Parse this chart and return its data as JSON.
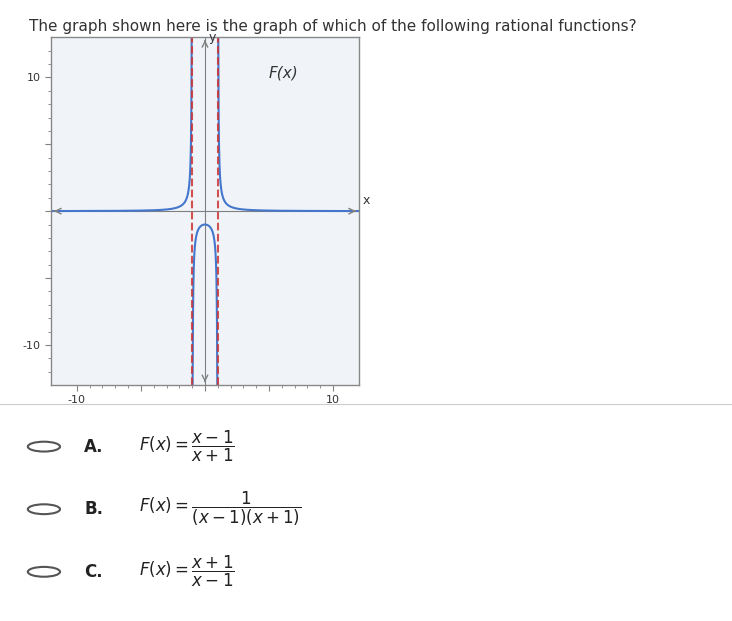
{
  "title": "The graph shown here is the graph of which of the following rational functions?",
  "func_label": "F(x)",
  "xlim": [
    -12,
    12
  ],
  "ylim": [
    -13,
    13
  ],
  "xticks": [
    -10,
    -5,
    0,
    5,
    10
  ],
  "yticks": [
    -10,
    -5,
    0,
    5,
    10
  ],
  "xtick_labels": [
    "-10",
    "",
    "",
    "",
    "10"
  ],
  "ytick_labels": [
    "-10",
    "",
    "",
    "",
    "10"
  ],
  "asymptotes": [
    -1,
    1
  ],
  "curve_color": "#4477cc",
  "asymptote_color": "#cc3333",
  "bg_color": "#f0f4f8",
  "answer_options": [
    {
      "label": "A.",
      "text": "F(x) = (x−1)/(x+1)"
    },
    {
      "label": "B.",
      "text": "F(x) = 1/((x−1)(x+1))"
    },
    {
      "label": "C.",
      "text": "F(x) = (x+1)/(x−1)"
    }
  ]
}
